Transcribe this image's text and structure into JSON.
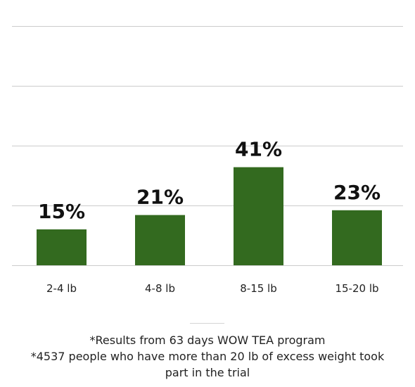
{
  "chart_data": {
    "type": "bar",
    "categories": [
      "2-4 lb",
      "4-8 lb",
      "8-15 lb",
      "15-20 lb"
    ],
    "values": [
      15,
      21,
      41,
      23
    ],
    "data_labels": [
      "15%",
      "21%",
      "41%",
      "23%"
    ],
    "ylim": [
      0,
      100
    ],
    "grid": true,
    "bar_color": "#336a1f"
  },
  "footnote": {
    "line1": "*Results from 63 days WOW TEA program",
    "line2": "*4537 people who have more than 20 lb of excess weight took",
    "line3": "part in the trial"
  }
}
